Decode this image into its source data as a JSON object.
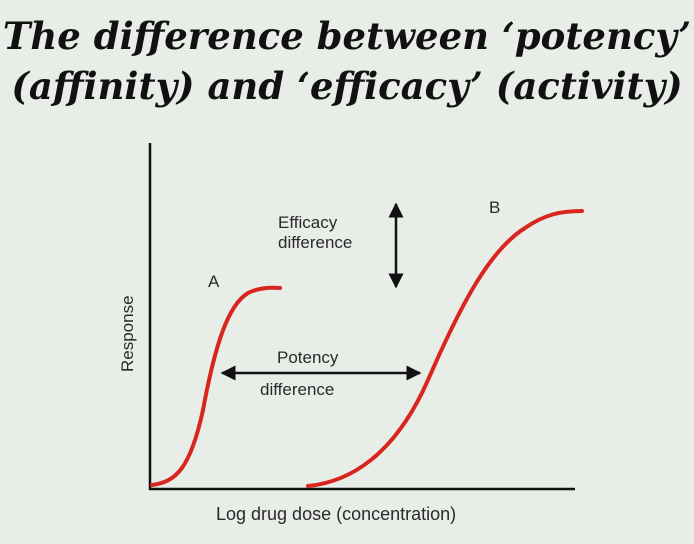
{
  "title": {
    "line1": "The difference between ‘potency’",
    "line2": "(affinity) and ‘efficacy’ (activity)"
  },
  "axes": {
    "xlabel": "Log drug dose (concentration)",
    "ylabel": "Response"
  },
  "curves": [
    {
      "label": "A",
      "color": "#d8261e"
    },
    {
      "label": "B",
      "color": "#d8261e"
    }
  ],
  "annotations": {
    "efficacy_line1": "Efficacy",
    "efficacy_line2": "difference",
    "potency_line1": "Potency",
    "potency_line2": "difference"
  }
}
